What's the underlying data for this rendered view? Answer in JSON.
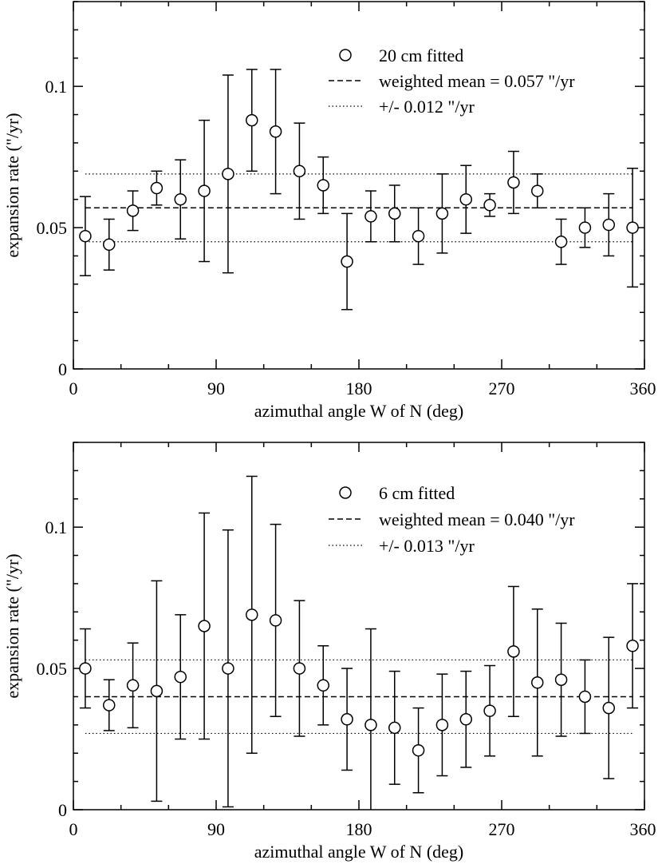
{
  "chart_data": [
    {
      "type": "scatter",
      "xlabel": "azimuthal angle W of N (deg)",
      "ylabel": "expansion rate (\"/yr)",
      "xlim": [
        0,
        360
      ],
      "ylim": [
        0,
        0.13
      ],
      "x_major_ticks": [
        0,
        90,
        180,
        270,
        360
      ],
      "x_tick_labels": [
        "0",
        "90",
        "180",
        "270",
        "360"
      ],
      "x_minor_step": 30,
      "y_major_ticks": [
        0,
        0.05,
        0.1
      ],
      "y_tick_labels": [
        "0",
        "0.05",
        "0.1"
      ],
      "y_minor_step": 0.01,
      "legend": {
        "position": "top-right",
        "points_label": "20 cm fitted",
        "mean_label": "weighted mean = 0.057 \"/yr",
        "band_label": "+/- 0.012 \"/yr"
      },
      "weighted_mean": 0.057,
      "band": [
        0.045,
        0.069
      ],
      "series": [
        {
          "name": "20 cm fitted",
          "x": [
            7.5,
            22.5,
            37.5,
            52.5,
            67.5,
            82.5,
            97.5,
            112.5,
            127.5,
            142.5,
            157.5,
            172.5,
            187.5,
            202.5,
            217.5,
            232.5,
            247.5,
            262.5,
            277.5,
            292.5,
            307.5,
            322.5,
            337.5,
            352.5
          ],
          "y": [
            0.047,
            0.044,
            0.056,
            0.064,
            0.06,
            0.063,
            0.069,
            0.088,
            0.084,
            0.07,
            0.065,
            0.038,
            0.054,
            0.055,
            0.047,
            0.055,
            0.06,
            0.058,
            0.066,
            0.063,
            0.045,
            0.05,
            0.051,
            0.05
          ],
          "err": [
            0.014,
            0.009,
            0.007,
            0.006,
            0.014,
            0.025,
            0.035,
            0.018,
            0.022,
            0.017,
            0.01,
            0.017,
            0.009,
            0.01,
            0.01,
            0.014,
            0.012,
            0.004,
            0.011,
            0.006,
            0.008,
            0.007,
            0.011,
            0.021
          ]
        }
      ]
    },
    {
      "type": "scatter",
      "xlabel": "azimuthal angle W of N (deg)",
      "ylabel": "expansion rate (\"/yr)",
      "xlim": [
        0,
        360
      ],
      "ylim": [
        0,
        0.13
      ],
      "x_major_ticks": [
        0,
        90,
        180,
        270,
        360
      ],
      "x_tick_labels": [
        "0",
        "90",
        "180",
        "270",
        "360"
      ],
      "x_minor_step": 30,
      "y_major_ticks": [
        0,
        0.05,
        0.1
      ],
      "y_tick_labels": [
        "0",
        "0.05",
        "0.1"
      ],
      "y_minor_step": 0.01,
      "legend": {
        "position": "top-right",
        "points_label": "6 cm fitted",
        "mean_label": "weighted mean = 0.040 \"/yr",
        "band_label": "+/- 0.013 \"/yr"
      },
      "weighted_mean": 0.04,
      "band": [
        0.027,
        0.053
      ],
      "series": [
        {
          "name": "6 cm fitted",
          "x": [
            7.5,
            22.5,
            37.5,
            52.5,
            67.5,
            82.5,
            97.5,
            112.5,
            127.5,
            142.5,
            157.5,
            172.5,
            187.5,
            202.5,
            217.5,
            232.5,
            247.5,
            262.5,
            277.5,
            292.5,
            307.5,
            322.5,
            337.5,
            352.5
          ],
          "y": [
            0.05,
            0.037,
            0.044,
            0.042,
            0.047,
            0.065,
            0.05,
            0.069,
            0.067,
            0.05,
            0.044,
            0.032,
            0.03,
            0.029,
            0.021,
            0.03,
            0.032,
            0.035,
            0.056,
            0.045,
            0.046,
            0.04,
            0.036,
            0.058
          ],
          "err": [
            0.014,
            0.009,
            0.015,
            0.039,
            0.022,
            0.04,
            0.049,
            0.049,
            0.034,
            0.024,
            0.014,
            0.018,
            0.034,
            0.02,
            0.015,
            0.018,
            0.017,
            0.016,
            0.023,
            0.026,
            0.02,
            0.013,
            0.025,
            0.022
          ]
        }
      ]
    }
  ]
}
